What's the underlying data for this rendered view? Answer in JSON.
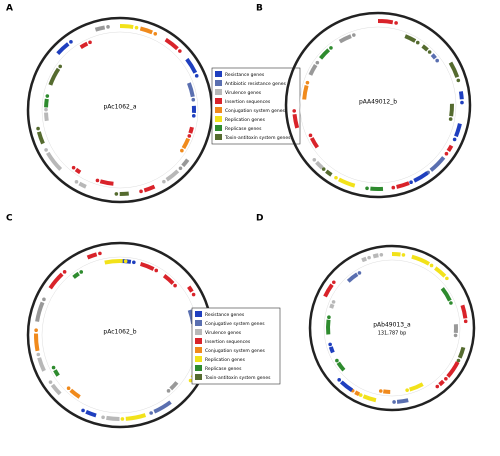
{
  "panels": [
    {
      "label": "A",
      "name": "pAc1062_a",
      "legend": [
        {
          "text": "Resistance genes",
          "color": "#1f3fbf"
        },
        {
          "text": "Antibiotic resistance genes",
          "color": "#5a6fb0"
        },
        {
          "text": "Virulence genes",
          "color": "#b8b8b8"
        },
        {
          "text": "Insertion sequences",
          "color": "#d9232a"
        },
        {
          "text": "Conjugation system genes",
          "color": "#f08a1c"
        },
        {
          "text": "Replication genes",
          "color": "#f2e21a"
        },
        {
          "text": "Replicase genes",
          "color": "#2e8b2e"
        },
        {
          "text": "Toxin-antitoxin system genes",
          "color": "#556b2f"
        }
      ]
    },
    {
      "label": "B",
      "name": "pAA49012_b",
      "legend": []
    },
    {
      "label": "C",
      "name": "pAc1062_b",
      "legend": [
        {
          "text": "Resistance genes",
          "color": "#1f3fbf"
        },
        {
          "text": "Conjugative system genes",
          "color": "#5a6fb0"
        },
        {
          "text": "Virulence genes",
          "color": "#b8b8b8"
        },
        {
          "text": "Insertion sequences",
          "color": "#d9232a"
        },
        {
          "text": "Conjugation system genes",
          "color": "#f08a1c"
        },
        {
          "text": "Replication genes",
          "color": "#f2e21a"
        },
        {
          "text": "Replicase genes",
          "color": "#2e8b2e"
        },
        {
          "text": "Toxin-antitoxin system genes",
          "color": "#556b2f"
        }
      ]
    },
    {
      "label": "D",
      "name": "pAb49013_a",
      "size": "131,787 bp",
      "legend": []
    }
  ]
}
